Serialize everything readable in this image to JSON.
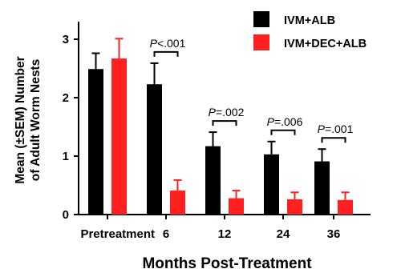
{
  "chart_data": {
    "type": "bar",
    "categories": [
      "Pretreatment",
      "6",
      "12",
      "24",
      "36"
    ],
    "series": [
      {
        "name": "IVM+ALB",
        "color": "#000000",
        "values": [
          2.49,
          2.23,
          1.17,
          1.03,
          0.91
        ],
        "errors": [
          0.27,
          0.36,
          0.24,
          0.22,
          0.21
        ]
      },
      {
        "name": "IVM+DEC+ALB",
        "color": "#ff2020",
        "values": [
          2.67,
          0.41,
          0.28,
          0.26,
          0.25
        ],
        "errors": [
          0.34,
          0.18,
          0.13,
          0.12,
          0.13
        ]
      }
    ],
    "xlabel": "Months Post-Treatment",
    "ylabel": [
      "Mean (±SEM) Number",
      "of Adult Worm Nests"
    ],
    "ylim": [
      0,
      3.3
    ],
    "yticks": [
      0,
      1,
      2,
      3
    ],
    "grid": false,
    "legend_position": "top-right",
    "annotations": [
      {
        "category_index": 1,
        "p_label": "P",
        "p_value": "<.001"
      },
      {
        "category_index": 2,
        "p_label": "P",
        "p_value": "=.002"
      },
      {
        "category_index": 3,
        "p_label": "P",
        "p_value": "=.006"
      },
      {
        "category_index": 4,
        "p_label": "P",
        "p_value": "=.001"
      }
    ]
  }
}
